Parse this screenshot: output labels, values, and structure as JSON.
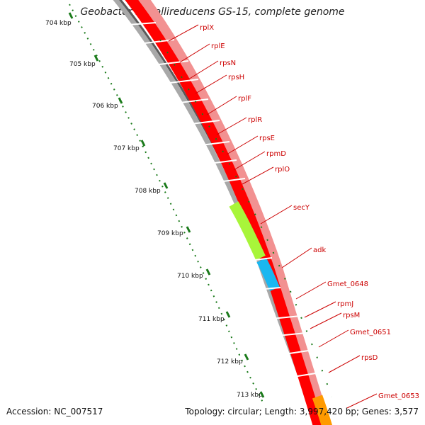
{
  "title": "Geobacter metallireducens GS-15, complete genome",
  "accession": "Accession: NC_007517",
  "summary": "Topology: circular; Length: 3,997,420 bp; Genes: 3,577",
  "colors": {
    "gene_red": "#ff0000",
    "gene_pink": "#f29191",
    "secY_green": "#a8f53a",
    "adk_blue": "#1ab7f0",
    "orange": "#ff9a00",
    "tick_green": "#1a7a1a",
    "label_red": "#cc0000"
  },
  "kbp_labels": [
    "704 kbp",
    "705 kbp",
    "706 kbp",
    "707 kbp",
    "708 kbp",
    "709 kbp",
    "710 kbp",
    "711 kbp",
    "712 kbp",
    "713 kbp"
  ],
  "genes": [
    "rplX",
    "rplE",
    "rpsN",
    "rpsH",
    "rplF",
    "rplR",
    "rpsE",
    "rpmD",
    "rplO",
    "secY",
    "adk",
    "Gmet_0648",
    "rpmJ",
    "rpsM",
    "Gmet_0651",
    "rpsD",
    "Gmet_0653"
  ]
}
